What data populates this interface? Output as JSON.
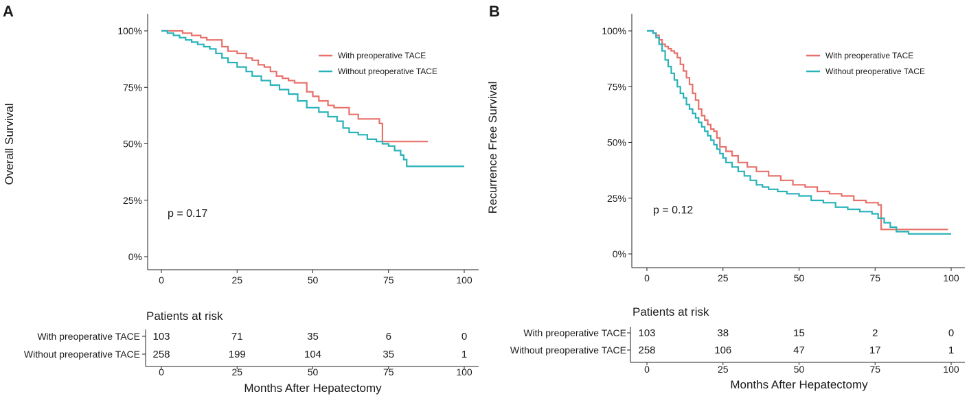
{
  "chart_data": [
    {
      "type": "line",
      "step": true,
      "panel_label": "A",
      "title": "",
      "xlabel": "Months After Hepatectomy",
      "ylabel": "Overall Survival",
      "xlim": [
        0,
        100
      ],
      "ylim": [
        0,
        100
      ],
      "x_ticks": [
        0,
        25,
        50,
        75,
        100
      ],
      "x_tick_labels": [
        "0",
        "25",
        "50",
        "75",
        "100"
      ],
      "y_ticks": [
        0,
        25,
        50,
        75,
        100
      ],
      "y_tick_labels": [
        "0%",
        "25%",
        "50%",
        "75%",
        "100%"
      ],
      "legend_position": "top-right",
      "annotation": "p = 0.17",
      "series": [
        {
          "name": "With preoperative TACE",
          "color": "#e8706a",
          "x": [
            0,
            7,
            10,
            13,
            15,
            20,
            22,
            25,
            28,
            30,
            32,
            34,
            36,
            38,
            40,
            42,
            44,
            48,
            50,
            52,
            55,
            57,
            62,
            65,
            70,
            72,
            73,
            76,
            80,
            85,
            88
          ],
          "y": [
            100,
            99,
            98,
            97,
            96,
            93,
            91,
            90,
            88,
            87,
            85,
            84,
            82,
            80,
            79,
            78,
            77,
            73,
            71,
            69,
            67,
            66,
            63,
            61,
            61,
            59,
            51,
            51,
            51,
            51,
            51
          ]
        },
        {
          "name": "Without preoperative TACE",
          "color": "#27b2b9",
          "x": [
            0,
            2,
            4,
            6,
            8,
            10,
            12,
            14,
            16,
            18,
            20,
            22,
            25,
            28,
            30,
            33,
            36,
            39,
            42,
            45,
            48,
            52,
            55,
            58,
            60,
            62,
            65,
            68,
            71,
            73,
            75,
            77,
            79,
            80,
            81,
            84,
            90,
            100
          ],
          "y": [
            100,
            99,
            98,
            97,
            96,
            95,
            94,
            93,
            92,
            90,
            88,
            86,
            84,
            82,
            80,
            78,
            76,
            74,
            72,
            69,
            66,
            64,
            62,
            60,
            57,
            55,
            54,
            52,
            51,
            50,
            49,
            47,
            45,
            43,
            40,
            40,
            40,
            40
          ]
        }
      ],
      "risk_table": {
        "title": "Patients at risk",
        "time_points": [
          "0",
          "25",
          "50",
          "75",
          "100"
        ],
        "rows": [
          {
            "label": "With preoperative TACE",
            "values": [
              "103",
              "71",
              "35",
              "6",
              "0"
            ]
          },
          {
            "label": "Without preoperative TACE",
            "values": [
              "258",
              "199",
              "104",
              "35",
              "1"
            ]
          }
        ],
        "xlabel": "Months After Hepatectomy"
      }
    },
    {
      "type": "line",
      "step": true,
      "panel_label": "B",
      "title": "",
      "xlabel": "Months After Hepatectomy",
      "ylabel": "Recurrence Free Survival",
      "xlim": [
        0,
        100
      ],
      "ylim": [
        0,
        100
      ],
      "x_ticks": [
        0,
        25,
        50,
        75,
        100
      ],
      "x_tick_labels": [
        "0",
        "25",
        "50",
        "75",
        "100"
      ],
      "y_ticks": [
        0,
        25,
        50,
        75,
        100
      ],
      "y_tick_labels": [
        "0%",
        "25%",
        "50%",
        "75%",
        "100%"
      ],
      "legend_position": "top-right",
      "annotation": "p = 0.12",
      "series": [
        {
          "name": "With preoperative TACE",
          "color": "#e8706a",
          "x": [
            0,
            1,
            2,
            3,
            4,
            5,
            6,
            7,
            8,
            9,
            10,
            11,
            12,
            13,
            14,
            15,
            16,
            17,
            18,
            19,
            20,
            21,
            22,
            23,
            24,
            26,
            28,
            30,
            33,
            36,
            40,
            44,
            48,
            52,
            56,
            60,
            64,
            68,
            72,
            76,
            77,
            80,
            84,
            90,
            99
          ],
          "y": [
            100,
            100,
            99,
            98,
            96,
            94,
            93,
            92,
            91,
            90,
            88,
            85,
            82,
            79,
            76,
            72,
            69,
            65,
            62,
            60,
            58,
            56,
            55,
            52,
            48,
            46,
            44,
            41,
            39,
            37,
            35,
            33,
            31,
            30,
            28,
            27,
            26,
            24,
            23,
            22,
            11,
            11,
            11,
            11,
            11
          ]
        },
        {
          "name": "Without preoperative TACE",
          "color": "#27b2b9",
          "x": [
            0,
            1,
            2,
            3,
            4,
            5,
            6,
            7,
            8,
            9,
            10,
            11,
            12,
            13,
            14,
            15,
            16,
            17,
            18,
            19,
            20,
            21,
            22,
            23,
            24,
            25,
            26,
            28,
            30,
            32,
            34,
            36,
            38,
            40,
            43,
            46,
            50,
            54,
            58,
            62,
            66,
            70,
            74,
            76,
            78,
            80,
            82,
            86,
            90,
            100
          ],
          "y": [
            100,
            100,
            99,
            97,
            94,
            91,
            87,
            84,
            81,
            78,
            75,
            72,
            70,
            67,
            65,
            63,
            61,
            59,
            57,
            55,
            53,
            51,
            49,
            47,
            45,
            43,
            41,
            39,
            37,
            35,
            33,
            31,
            30,
            29,
            28,
            27,
            26,
            24,
            23,
            21,
            20,
            19,
            18,
            16,
            14,
            12,
            10,
            9,
            9,
            9
          ]
        }
      ],
      "risk_table": {
        "title": "Patients at risk",
        "time_points": [
          "0",
          "25",
          "50",
          "75",
          "100"
        ],
        "rows": [
          {
            "label": "With preoperative TACE",
            "values": [
              "103",
              "38",
              "15",
              "2",
              "0"
            ]
          },
          {
            "label": "Without preoperative TACE",
            "values": [
              "258",
              "106",
              "47",
              "17",
              "1"
            ]
          }
        ],
        "xlabel": "Months After Hepatectomy"
      }
    }
  ]
}
